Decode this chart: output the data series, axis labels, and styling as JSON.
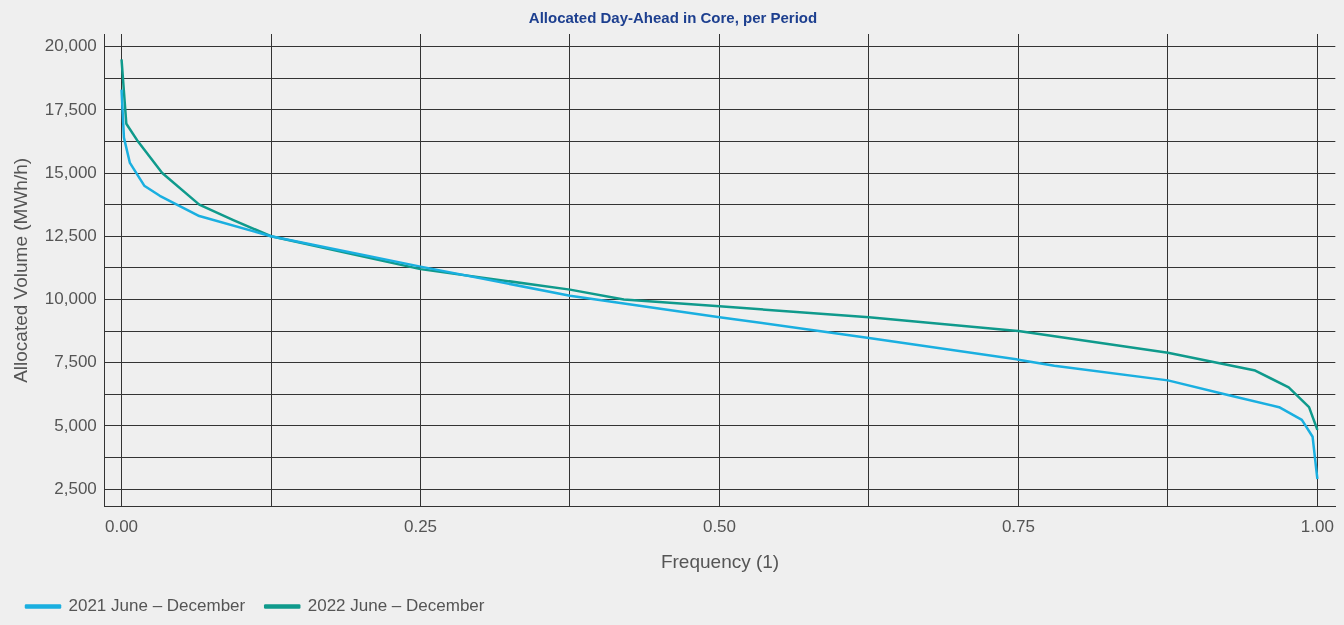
{
  "chart_data": {
    "type": "line",
    "title": "Allocated Day-Ahead in Core, per Period",
    "xlabel": "Frequency (1)",
    "ylabel": "Allocated Volume (MWh/h)",
    "xlim": [
      -0.014,
      1.015
    ],
    "ylim": [
      1800,
      20500
    ],
    "xticks": [
      {
        "value": 0,
        "label": "0.00"
      },
      {
        "value": 0.125,
        "label": null
      },
      {
        "value": 0.25,
        "label": "0.25"
      },
      {
        "value": 0.375,
        "label": null
      },
      {
        "value": 0.5,
        "label": "0.50"
      },
      {
        "value": 0.625,
        "label": null
      },
      {
        "value": 0.75,
        "label": "0.75"
      },
      {
        "value": 0.875,
        "label": null
      },
      {
        "value": 1,
        "label": "1.00"
      }
    ],
    "yticks": [
      {
        "value": 2500,
        "label": "2,500"
      },
      {
        "value": 3750,
        "label": null
      },
      {
        "value": 5000,
        "label": "5,000"
      },
      {
        "value": 6250,
        "label": null
      },
      {
        "value": 7500,
        "label": "7,500"
      },
      {
        "value": 8750,
        "label": null
      },
      {
        "value": 10000,
        "label": "10,000"
      },
      {
        "value": 11250,
        "label": null
      },
      {
        "value": 12500,
        "label": "12,500"
      },
      {
        "value": 13750,
        "label": null
      },
      {
        "value": 15000,
        "label": "15,000"
      },
      {
        "value": 16250,
        "label": null
      },
      {
        "value": 17500,
        "label": "17,500"
      },
      {
        "value": 18750,
        "label": null
      },
      {
        "value": 20000,
        "label": "20,000"
      }
    ],
    "grid": true,
    "legend": "bottom left",
    "marker": "none",
    "line_style": "solid",
    "series": [
      {
        "name": "2021 June – December",
        "color": "#1aafe0",
        "x": [
          0,
          0.002,
          0.007,
          0.019,
          0.032,
          0.065,
          0.125,
          0.25,
          0.375,
          0.5,
          0.625,
          0.75,
          0.78,
          0.875,
          0.926,
          0.968,
          0.987,
          0.996,
          0.999,
          1
        ],
        "values": [
          18300,
          16400,
          15400,
          14500,
          14100,
          13300,
          12500,
          11300,
          10150,
          9300,
          8480,
          7620,
          7380,
          6800,
          6210,
          5740,
          5240,
          4570,
          3300,
          2900
        ]
      },
      {
        "name": "2022 June – December",
        "color": "#0f9a8c",
        "x": [
          0,
          0.004,
          0.013,
          0.034,
          0.065,
          0.093,
          0.125,
          0.25,
          0.375,
          0.42,
          0.5,
          0.625,
          0.75,
          0.875,
          0.948,
          0.976,
          0.993,
          1
        ],
        "values": [
          19500,
          16950,
          16300,
          15000,
          13750,
          13150,
          12500,
          11200,
          10390,
          10000,
          9730,
          9300,
          8750,
          7890,
          7190,
          6520,
          5740,
          4840
        ]
      }
    ]
  }
}
